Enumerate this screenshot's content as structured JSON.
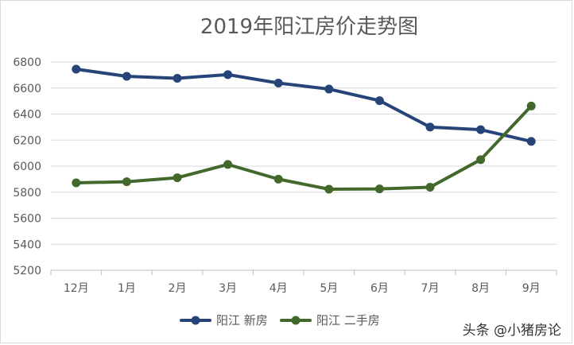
{
  "chart_data": {
    "type": "line",
    "title": "2019年阳江房价走势图",
    "xlabel": "",
    "ylabel": "",
    "categories": [
      "12月",
      "1月",
      "2月",
      "3月",
      "4月",
      "5月",
      "6月",
      "7月",
      "8月",
      "9月"
    ],
    "ylim": [
      5200,
      6800
    ],
    "yticks": [
      5200,
      5400,
      5600,
      5800,
      6000,
      6200,
      6400,
      6600,
      6800
    ],
    "grid": true,
    "legend": "bottom",
    "series": [
      {
        "name": "阳江 新房",
        "color": "#264478",
        "values": [
          6745,
          6690,
          6675,
          6703,
          6638,
          6592,
          6503,
          6300,
          6280,
          6190
        ]
      },
      {
        "name": "阳江 二手房",
        "color": "#43682b",
        "values": [
          5872,
          5880,
          5911,
          6013,
          5900,
          5823,
          5825,
          5838,
          6050,
          6462
        ]
      }
    ]
  },
  "watermark": {
    "text": "头条 @小猪房论"
  }
}
